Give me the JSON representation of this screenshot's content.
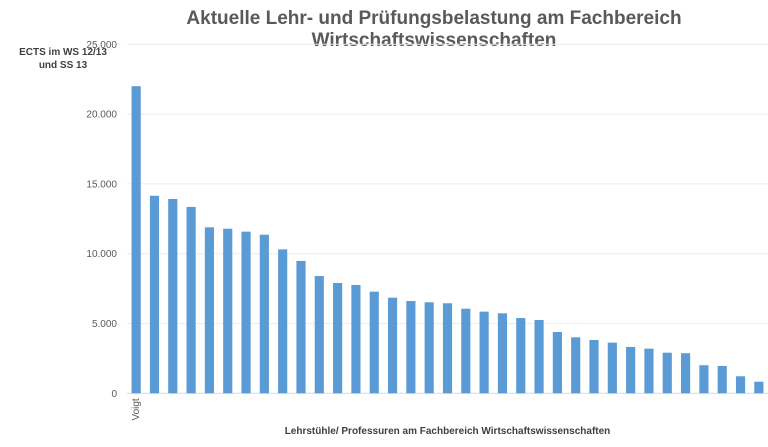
{
  "chart_data": {
    "type": "bar",
    "title": "Aktuelle Lehr- und Prüfungsbelastung am Fachbereich Wirtschaftswissenschaften",
    "xlabel": "Lehrstühle/ Professuren am Fachbereich Wirtschaftswissenschaften",
    "ylabel": "ECTS im WS 12/13 und SS 13",
    "ylim": [
      0,
      25000
    ],
    "yticks": [
      "0",
      "5.000",
      "10.000",
      "15.000",
      "20.000",
      "25.000"
    ],
    "grid": true,
    "bar_color": "#5b9bd5",
    "categories": [
      "Voigt",
      "",
      "",
      "",
      "",
      "",
      "",
      "",
      "",
      "",
      "",
      "",
      "",
      "",
      "",
      "",
      "",
      "",
      "",
      "",
      "",
      "",
      "",
      "",
      "",
      "",
      "",
      "",
      "",
      "",
      "",
      "",
      "",
      "",
      ""
    ],
    "values": [
      22000,
      14150,
      13920,
      13350,
      11890,
      11790,
      11580,
      11360,
      10310,
      9480,
      8400,
      7900,
      7760,
      7280,
      6850,
      6610,
      6520,
      6450,
      6060,
      5850,
      5730,
      5390,
      5250,
      4390,
      4010,
      3820,
      3630,
      3320,
      3200,
      2910,
      2870,
      2010,
      1960,
      1220,
      830
    ]
  }
}
